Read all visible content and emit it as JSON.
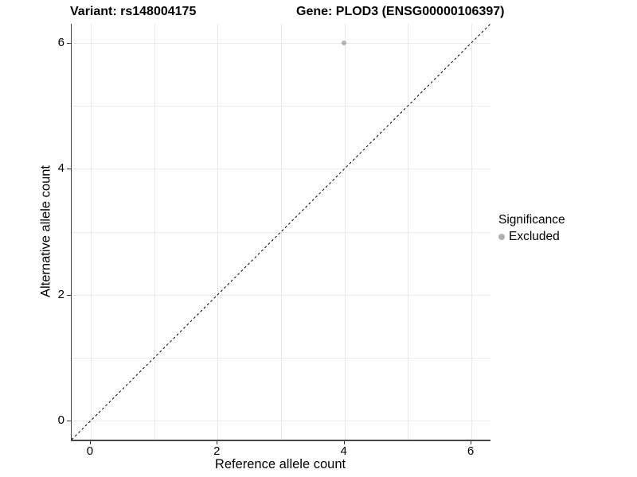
{
  "chart_data": {
    "type": "scatter",
    "title_left": "Variant: rs148004175",
    "title_right": "Gene: PLOD3 (ENSG00000106397)",
    "xlabel": "Reference allele count",
    "ylabel": "Alternative allele count",
    "xlim": [
      -0.3,
      6.3
    ],
    "ylim": [
      -0.3,
      6.3
    ],
    "x_ticks": [
      0,
      2,
      4,
      6
    ],
    "y_ticks": [
      0,
      2,
      4,
      6
    ],
    "grid_lines": [
      0,
      1,
      2,
      3,
      4,
      5,
      6
    ],
    "grid": true,
    "points": [
      {
        "x": 4,
        "y": 6,
        "series": "Excluded"
      }
    ],
    "reference_line": {
      "type": "identity",
      "style": "dashed",
      "color": "#000000"
    },
    "legend": {
      "title": "Significance",
      "position": "right",
      "items": [
        {
          "label": "Excluded",
          "color": "#b0b0b0"
        }
      ]
    }
  },
  "colors": {
    "point": "#b0b0b0",
    "grid": "#e8e8e8",
    "axis_line": "#404040",
    "tick_mark": "#333333",
    "text": "#000000"
  }
}
